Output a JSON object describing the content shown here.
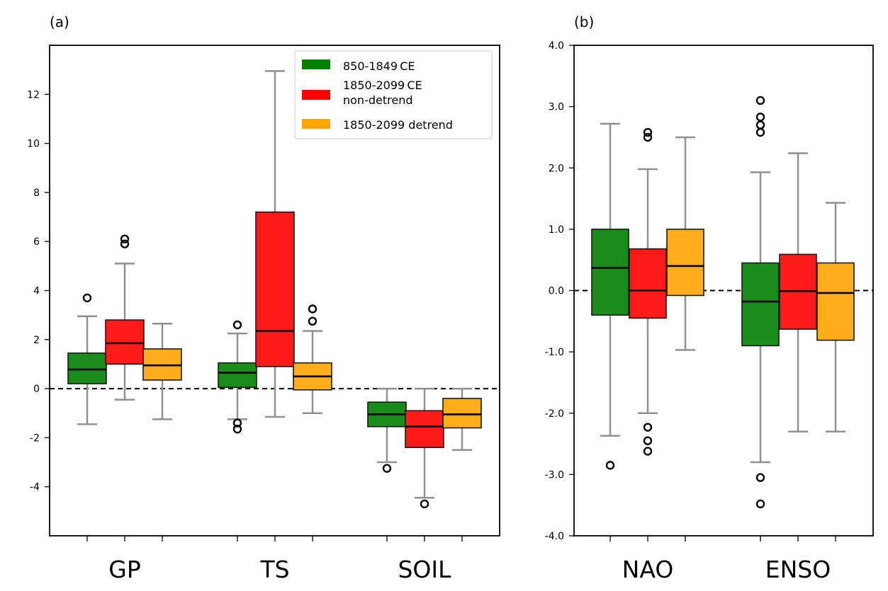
{
  "chart_data": [
    {
      "panel": "(a)",
      "type": "box",
      "title": "(a)",
      "ylim": [
        -6,
        14
      ],
      "yticks": [
        -4,
        -2,
        0,
        2,
        4,
        6,
        8,
        10,
        12
      ],
      "ytick_labels": [
        "-4",
        "-2",
        "0",
        "2",
        "4",
        "6",
        "8",
        "10",
        "12"
      ],
      "categories": [
        "GP",
        "TS",
        "SOIL"
      ],
      "reference_line": 0,
      "legend": {
        "placement": "top-right",
        "entries": [
          {
            "label": "850-1849 CE",
            "color": "#008000"
          },
          {
            "label_lines": [
              "1850-2099 CE",
              " non-detrend"
            ],
            "color": "#ff0000"
          },
          {
            "label": "1850-2099 detrend",
            "color": "#ffa500"
          }
        ]
      },
      "series": [
        {
          "name": "850-1849 CE",
          "color": "#1a8c1a",
          "boxes": [
            {
              "category": "GP",
              "whislo": -1.45,
              "q1": 0.2,
              "med": 0.78,
              "q3": 1.45,
              "whishi": 2.95,
              "fliers": [
                3.7
              ]
            },
            {
              "category": "TS",
              "whislo": -1.25,
              "q1": 0.05,
              "med": 0.65,
              "q3": 1.05,
              "whishi": 2.25,
              "fliers": [
                2.6,
                -1.4,
                -1.65
              ]
            },
            {
              "category": "SOIL",
              "whislo": -3.0,
              "q1": -1.55,
              "med": -1.05,
              "q3": -0.55,
              "whishi": 0.0,
              "fliers": [
                -3.25
              ]
            }
          ]
        },
        {
          "name": "1850-2099 CE non-detrend",
          "color": "#ff1a1a",
          "boxes": [
            {
              "category": "GP",
              "whislo": -0.45,
              "q1": 1.0,
              "med": 1.85,
              "q3": 2.8,
              "whishi": 5.1,
              "fliers": [
                6.1,
                5.9
              ]
            },
            {
              "category": "TS",
              "whislo": -1.15,
              "q1": 0.9,
              "med": 2.35,
              "q3": 7.2,
              "whishi": 12.95,
              "fliers": []
            },
            {
              "category": "SOIL",
              "whislo": -4.45,
              "q1": -2.4,
              "med": -1.55,
              "q3": -0.9,
              "whishi": 0.0,
              "fliers": [
                -4.7
              ]
            }
          ]
        },
        {
          "name": "1850-2099 detrend",
          "color": "#ffad1a",
          "boxes": [
            {
              "category": "GP",
              "whislo": -1.25,
              "q1": 0.35,
              "med": 0.95,
              "q3": 1.62,
              "whishi": 2.65,
              "fliers": []
            },
            {
              "category": "TS",
              "whislo": -1.0,
              "q1": -0.05,
              "med": 0.5,
              "q3": 1.05,
              "whishi": 2.35,
              "fliers": [
                3.25,
                2.75
              ]
            },
            {
              "category": "SOIL",
              "whislo": -2.5,
              "q1": -1.6,
              "med": -1.05,
              "q3": -0.4,
              "whishi": 0.0,
              "fliers": []
            }
          ]
        }
      ]
    },
    {
      "panel": "(b)",
      "type": "box",
      "title": "(b)",
      "ylim": [
        -4,
        4
      ],
      "yticks": [
        -4,
        -3,
        -2,
        -1,
        0,
        1,
        2,
        3,
        4
      ],
      "ytick_labels": [
        "-4.0",
        "-3.0",
        "-2.0",
        "-1.0",
        "0.0",
        "1.0",
        "2.0",
        "3.0",
        "4.0"
      ],
      "categories": [
        "NAO",
        "ENSO"
      ],
      "reference_line": 0,
      "series": [
        {
          "name": "850-1849 CE",
          "color": "#1a8c1a",
          "boxes": [
            {
              "category": "NAO",
              "whislo": -2.37,
              "q1": -0.4,
              "med": 0.37,
              "q3": 1.0,
              "whishi": 2.72,
              "fliers": [
                -2.85
              ]
            },
            {
              "category": "ENSO",
              "whislo": -2.8,
              "q1": -0.9,
              "med": -0.18,
              "q3": 0.45,
              "whishi": 1.93,
              "fliers": [
                3.1,
                2.83,
                2.7,
                2.58,
                -3.05,
                -3.48
              ]
            }
          ]
        },
        {
          "name": "1850-2099 CE non-detrend",
          "color": "#ff1a1a",
          "boxes": [
            {
              "category": "NAO",
              "whislo": -2.0,
              "q1": -0.45,
              "med": 0.0,
              "q3": 0.68,
              "whishi": 1.98,
              "fliers": [
                2.58,
                2.5,
                -2.23,
                -2.45,
                -2.62
              ]
            },
            {
              "category": "ENSO",
              "whislo": -2.3,
              "q1": -0.63,
              "med": -0.01,
              "q3": 0.59,
              "whishi": 2.24,
              "fliers": []
            }
          ]
        },
        {
          "name": "1850-2099 detrend",
          "color": "#ffad1a",
          "boxes": [
            {
              "category": "NAO",
              "whislo": -0.97,
              "q1": -0.08,
              "med": 0.4,
              "q3": 1.0,
              "whishi": 2.5,
              "fliers": []
            },
            {
              "category": "ENSO",
              "whislo": -2.3,
              "q1": -0.81,
              "med": -0.04,
              "q3": 0.45,
              "whishi": 1.43,
              "fliers": []
            }
          ]
        }
      ]
    }
  ]
}
